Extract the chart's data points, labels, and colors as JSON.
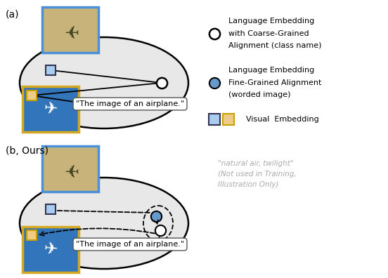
{
  "title_a": "(a)",
  "title_b": "(b, Ours)",
  "text_caption": "\"The image of an airplane.\"",
  "text_natural": "\"natural air, twilight\"\n(Not used in Training,\nIllustration Only)",
  "legend_title1": "Language Embedding",
  "legend_line1a": "with Coarse-Grained",
  "legend_line1b": "Alignment (class name)",
  "legend_title2": "Language Embedding",
  "legend_line2a": "Fine-Grained Alignment",
  "legend_line2b": "(worded image)",
  "legend_title3": "Visual  Embedding",
  "ellipse_color": "#e8e8e8",
  "text_gray": "#aaaaaa",
  "blue_border": "#4a90d9",
  "yellow_border": "#d4a820",
  "dark_square_border": "#333355",
  "yellow_sq_border": "#c8a000",
  "beige_bg": "#c8b47a",
  "blue_sky": "#3375bb"
}
